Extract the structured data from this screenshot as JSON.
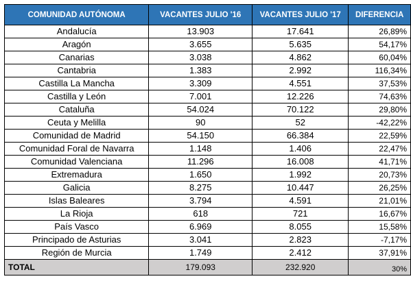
{
  "table": {
    "headers": [
      "COMUNIDAD AUTÓNOMA",
      "VACANTES JULIO '16",
      "VACANTES JULIO '17",
      "DIFERENCIA"
    ],
    "rows": [
      [
        "Andalucía",
        "13.903",
        "17.641",
        "26,89%"
      ],
      [
        "Aragón",
        "3.655",
        "5.635",
        "54,17%"
      ],
      [
        "Canarias",
        "3.038",
        "4.862",
        "60,04%"
      ],
      [
        "Cantabria",
        "1.383",
        "2.992",
        "116,34%"
      ],
      [
        "Castilla La Mancha",
        "3.309",
        "4.551",
        "37,53%"
      ],
      [
        "Castilla y León",
        "7.001",
        "12.226",
        "74,63%"
      ],
      [
        "Cataluña",
        "54.024",
        "70.122",
        "29,80%"
      ],
      [
        "Ceuta y Melilla",
        "90",
        "52",
        "-42,22%"
      ],
      [
        "Comunidad de Madrid",
        "54.150",
        "66.384",
        "22,59%"
      ],
      [
        "Comunidad Foral de Navarra",
        "1.148",
        "1.406",
        "22,47%"
      ],
      [
        "Comunidad Valenciana",
        "11.296",
        "16.008",
        "41,71%"
      ],
      [
        "Extremadura",
        "1.650",
        "1.992",
        "20,73%"
      ],
      [
        "Galicia",
        "8.275",
        "10.447",
        "26,25%"
      ],
      [
        "Islas Baleares",
        "3.794",
        "4.591",
        "21,01%"
      ],
      [
        "La Rioja",
        "618",
        "721",
        "16,67%"
      ],
      [
        "País Vasco",
        "6.969",
        "8.055",
        "15,58%"
      ],
      [
        "Principado de Asturias",
        "3.041",
        "2.823",
        "-7,17%"
      ],
      [
        "Región de Murcia",
        "1.749",
        "2.412",
        "37,91%"
      ]
    ],
    "total": [
      "TOTAL",
      "179.093",
      "232.920",
      "30%"
    ]
  },
  "colors": {
    "header_bg": "#2e75b6",
    "header_text": "#ffffff",
    "total_bg": "#d0cece"
  }
}
